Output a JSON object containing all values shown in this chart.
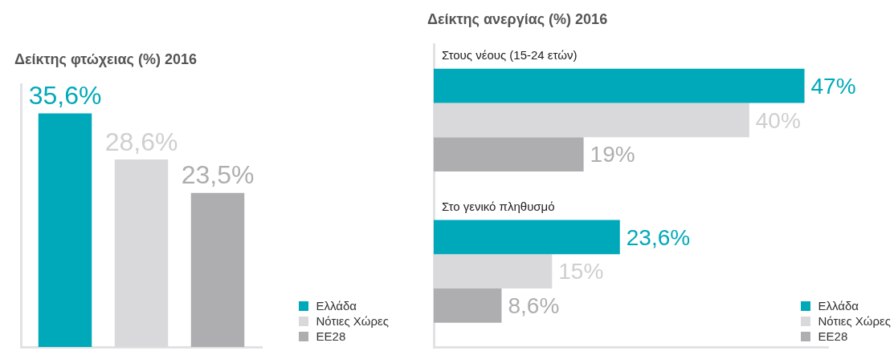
{
  "chart_data": [
    {
      "type": "bar",
      "title": "Δείκτης φτώχειας (%) 2016",
      "categories": [
        null
      ],
      "legend": "bottom right",
      "series": [
        {
          "name": "Ελλάδα",
          "color": "#00a9b9",
          "values": [
            35.6
          ],
          "value_labels": [
            "35,6%"
          ]
        },
        {
          "name": "Νότιες Χώρες",
          "color": "#d9d9db",
          "values": [
            28.6
          ],
          "value_labels": [
            "28,6%"
          ]
        },
        {
          "name": "ΕΕ28",
          "color": "#aeaeb0",
          "values": [
            23.5
          ],
          "value_labels": [
            "23,5%"
          ]
        }
      ]
    },
    {
      "type": "bar",
      "title": "Δείκτης ανεργίας (%) 2016",
      "orientation": "horizontal",
      "categories": [
        "Στους νέους (15-24 ετών)",
        "Στο γενικό πληθυσμό"
      ],
      "legend": "bottom right",
      "series": [
        {
          "name": "Ελλάδα",
          "color": "#00a9b9",
          "values": [
            47,
            23.6
          ],
          "value_labels": [
            "47%",
            "23,6%"
          ]
        },
        {
          "name": "Νότιες Χώρες",
          "color": "#d9d9db",
          "values": [
            40,
            15
          ],
          "value_labels": [
            "40%",
            "15%"
          ]
        },
        {
          "name": "ΕΕ28",
          "color": "#aeaeb0",
          "values": [
            19,
            8.6
          ],
          "value_labels": [
            "19%",
            "8,6%"
          ]
        }
      ]
    }
  ]
}
